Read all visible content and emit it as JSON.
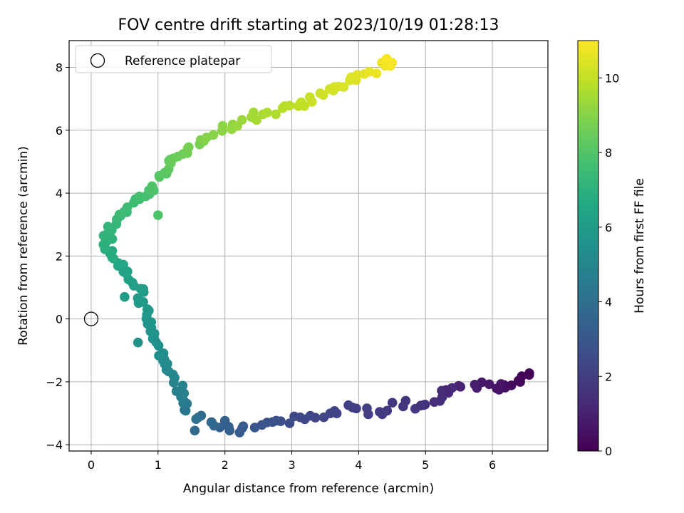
{
  "chart_data": {
    "type": "scatter",
    "title": "FOV centre drift starting at 2023/10/19 01:28:13",
    "xlabel": "Angular distance from reference (arcmin)",
    "ylabel": "Rotation from reference (arcmin)",
    "xlim": [
      -0.33,
      6.83
    ],
    "ylim": [
      -4.2,
      8.85
    ],
    "xticks": [
      0,
      1,
      2,
      3,
      4,
      5,
      6
    ],
    "yticks": [
      -4,
      -2,
      0,
      2,
      4,
      6,
      8
    ],
    "grid": true,
    "legend": {
      "position": "top-left",
      "entries": [
        "Reference platepar"
      ]
    },
    "reference_point": {
      "x": 0,
      "y": 0,
      "label": "Reference platepar"
    },
    "colorbar": {
      "label": "Hours from first FF file",
      "range": [
        0,
        11
      ],
      "ticks": [
        0,
        2,
        4,
        6,
        8,
        10
      ],
      "colormap": "viridis"
    },
    "key_points": [
      {
        "x": 6.5,
        "y": -1.8,
        "hours": 0.0
      },
      {
        "x": 6.2,
        "y": -2.2,
        "hours": 0.5
      },
      {
        "x": 5.7,
        "y": -2.1,
        "hours": 0.9
      },
      {
        "x": 5.4,
        "y": -2.2,
        "hours": 1.2
      },
      {
        "x": 5.05,
        "y": -2.7,
        "hours": 1.5
      },
      {
        "x": 4.3,
        "y": -2.9,
        "hours": 1.9
      },
      {
        "x": 3.9,
        "y": -2.85,
        "hours": 2.1
      },
      {
        "x": 3.1,
        "y": -3.15,
        "hours": 2.4
      },
      {
        "x": 2.5,
        "y": -3.4,
        "hours": 2.9
      },
      {
        "x": 2.05,
        "y": -3.5,
        "hours": 3.3
      },
      {
        "x": 1.7,
        "y": -3.1,
        "hours": 3.8
      },
      {
        "x": 1.5,
        "y": -3.0,
        "hours": 4.1
      },
      {
        "x": 1.35,
        "y": -2.4,
        "hours": 4.7
      },
      {
        "x": 1.15,
        "y": -1.6,
        "hours": 5.1
      },
      {
        "x": 0.95,
        "y": -0.7,
        "hours": 5.5
      },
      {
        "x": 0.85,
        "y": 0.2,
        "hours": 5.8
      },
      {
        "x": 0.7,
        "y": 1.0,
        "hours": 6.1
      },
      {
        "x": 0.45,
        "y": 1.6,
        "hours": 6.4
      },
      {
        "x": 0.2,
        "y": 2.3,
        "hours": 6.9
      },
      {
        "x": 0.35,
        "y": 3.1,
        "hours": 7.3
      },
      {
        "x": 0.7,
        "y": 3.8,
        "hours": 7.6
      },
      {
        "x": 1.0,
        "y": 4.4,
        "hours": 8.0
      },
      {
        "x": 1.3,
        "y": 5.2,
        "hours": 8.5
      },
      {
        "x": 1.7,
        "y": 5.8,
        "hours": 8.9
      },
      {
        "x": 2.2,
        "y": 6.2,
        "hours": 9.3
      },
      {
        "x": 2.9,
        "y": 6.7,
        "hours": 9.8
      },
      {
        "x": 3.5,
        "y": 7.1,
        "hours": 10.2
      },
      {
        "x": 4.0,
        "y": 7.7,
        "hours": 10.5
      },
      {
        "x": 4.5,
        "y": 8.15,
        "hours": 10.9
      }
    ],
    "extra_points": [
      {
        "x": 0.7,
        "y": -0.75,
        "hours": 5.6
      },
      {
        "x": 0.5,
        "y": 0.7,
        "hours": 6.1
      },
      {
        "x": 1.0,
        "y": 3.3,
        "hours": 7.9
      },
      {
        "x": 2.07,
        "y": -3.55,
        "hours": 3.3
      },
      {
        "x": 1.55,
        "y": -3.55,
        "hours": 3.7
      },
      {
        "x": 6.55,
        "y": -1.78,
        "hours": 0.05
      },
      {
        "x": 6.1,
        "y": -2.25,
        "hours": 0.55
      }
    ]
  }
}
